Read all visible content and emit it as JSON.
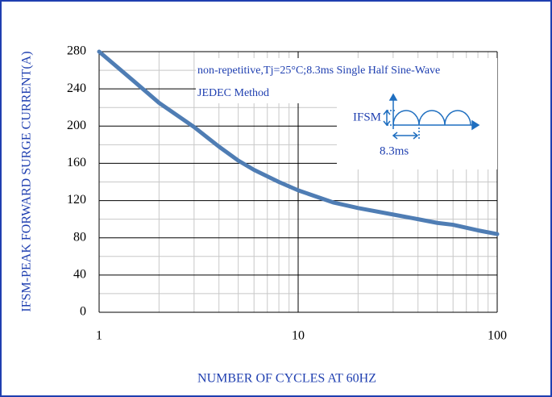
{
  "chart_data": {
    "type": "line",
    "x_label": "NUMBER OF CYCLES AT 60HZ",
    "y_label": "IFSM-PEAK FORWARD SURGE CURRENT(A)",
    "annotations": [
      "non-repetitive,Tj=25°C;8.3ms Single Half Sine-Wave",
      "JEDEC Method",
      "IFSM",
      "8.3ms"
    ],
    "x": [
      1,
      1.5,
      2,
      3,
      4,
      5,
      6,
      8,
      10,
      15,
      20,
      30,
      40,
      50,
      60,
      80,
      100
    ],
    "series": [
      {
        "color": "#4f7db4",
        "values": [
          280,
          248,
          225,
          199,
          178,
          163,
          153,
          140,
          131,
          118,
          112,
          105,
          100,
          96,
          94,
          88,
          84
        ]
      }
    ],
    "xlim": [
      1,
      100
    ],
    "xticks": [
      1,
      10,
      100
    ],
    "x_log": true,
    "xminorticks": [
      2,
      3,
      4,
      5,
      6,
      7,
      8,
      9,
      20,
      30,
      40,
      50,
      60,
      70,
      80,
      90
    ],
    "ylim": [
      0,
      280
    ],
    "yticks": [
      0,
      40,
      80,
      120,
      160,
      200,
      240,
      280
    ],
    "yminorticks": [
      20,
      60,
      100,
      140,
      180,
      220,
      260
    ],
    "grid": true
  }
}
